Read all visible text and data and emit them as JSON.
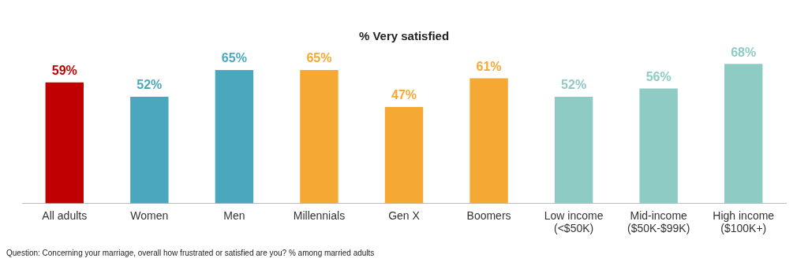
{
  "chart_data": {
    "type": "bar",
    "title": "% Very satisfied",
    "categories": [
      "All adults",
      "Women",
      "Men",
      "Millennials",
      "Gen X",
      "Boomers",
      "Low income\n(<$50K)",
      "Mid-income\n($50K-$99K)",
      "High income\n($100K+)"
    ],
    "values": [
      59,
      52,
      65,
      65,
      47,
      61,
      52,
      56,
      68
    ],
    "colors": [
      "#c00000",
      "#4ba7bd",
      "#4ba7bd",
      "#f5a833",
      "#f5a833",
      "#f5a833",
      "#8ecbc4",
      "#8ecbc4",
      "#8ecbc4"
    ],
    "value_labels": [
      "59%",
      "52%",
      "65%",
      "65%",
      "47%",
      "61%",
      "52%",
      "56%",
      "68%"
    ],
    "annotations": [
      "Question: Concerning your marriage, overall how frustrated or satisfied are you? % among married adults"
    ],
    "grid": false,
    "legend": false
  }
}
